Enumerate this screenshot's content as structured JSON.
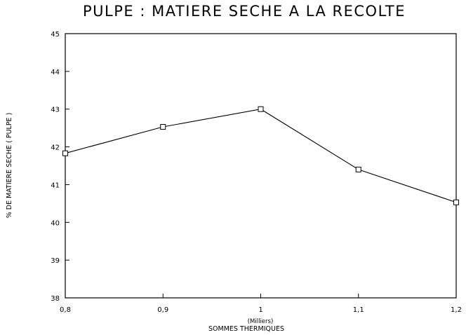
{
  "chart_data": {
    "type": "line",
    "title": "PULPE : MATIERE SECHE A LA RECOLTE",
    "xlabel": "SOMMES THERMIQUES",
    "xunit": "(Milliers)",
    "ylabel": "% DE MATIERE SECHE ( PULPE )",
    "xlim": [
      0.8,
      1.2
    ],
    "ylim": [
      38,
      45
    ],
    "x_ticks": [
      "0,8",
      "0,9",
      "1",
      "1,1",
      "1,2"
    ],
    "y_ticks": [
      "38",
      "39",
      "40",
      "41",
      "42",
      "43",
      "44",
      "45"
    ],
    "grid": false,
    "legend": "none",
    "colors": {
      "line": "#000000",
      "axis": "#000000"
    },
    "series": [
      {
        "x": [
          0.8,
          0.9,
          1.0,
          1.1,
          1.2
        ],
        "values": [
          41.83,
          42.53,
          43.0,
          41.4,
          40.53
        ],
        "marker": "square"
      }
    ]
  }
}
